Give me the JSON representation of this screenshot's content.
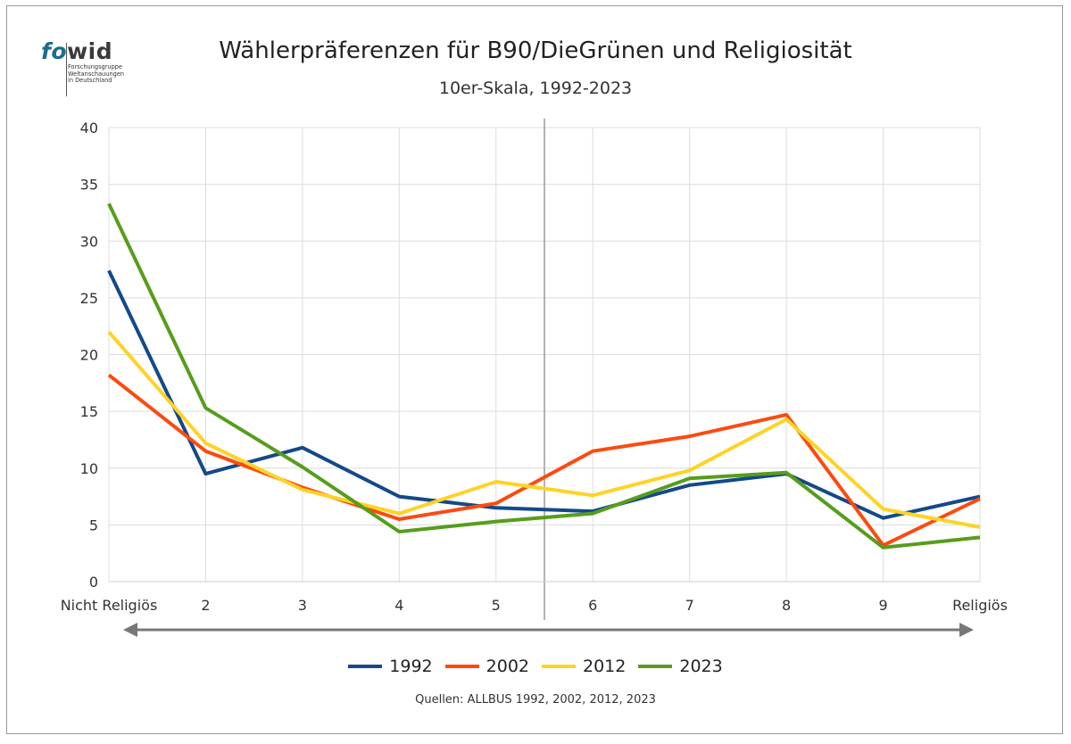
{
  "logo": {
    "word_part1": "fo",
    "word_part2": "wid",
    "subtitle_lines": [
      "Forschungsgruppe",
      "Weltanschauungen",
      "in Deutschland"
    ]
  },
  "title": "Wählerpräferenzen für B90/DieGrünen und Religiosität",
  "subtitle": "10er-Skala, 1992-2023",
  "source": "Quellen: ALLBUS 1992, 2002, 2012, 2023",
  "chart_data": {
    "type": "line",
    "categories": [
      "Nicht Religiös",
      "2",
      "3",
      "4",
      "5",
      "6",
      "7",
      "8",
      "9",
      "Religiös"
    ],
    "series": [
      {
        "name": "1992",
        "color": "#13498a",
        "values": [
          27.4,
          9.5,
          11.8,
          7.5,
          6.5,
          6.2,
          8.5,
          9.5,
          5.6,
          7.5
        ]
      },
      {
        "name": "2002",
        "color": "#fb4b0f",
        "values": [
          18.2,
          11.5,
          8.3,
          5.5,
          6.9,
          11.5,
          12.8,
          14.7,
          3.2,
          7.3
        ]
      },
      {
        "name": "2012",
        "color": "#fed326",
        "values": [
          22.0,
          12.2,
          8.1,
          6.0,
          8.8,
          7.6,
          9.8,
          14.3,
          6.4,
          4.8
        ]
      },
      {
        "name": "2023",
        "color": "#579d1c",
        "values": [
          33.3,
          15.3,
          10.1,
          4.4,
          5.3,
          6.0,
          9.1,
          9.6,
          3.0,
          3.9
        ]
      }
    ],
    "ylim": [
      0,
      40
    ],
    "yticks": [
      0,
      5,
      10,
      15,
      20,
      25,
      30,
      35,
      40
    ],
    "grid": true,
    "divider_between": [
      "5",
      "6"
    ],
    "legend_position": "bottom",
    "xlabel": "",
    "ylabel": ""
  }
}
